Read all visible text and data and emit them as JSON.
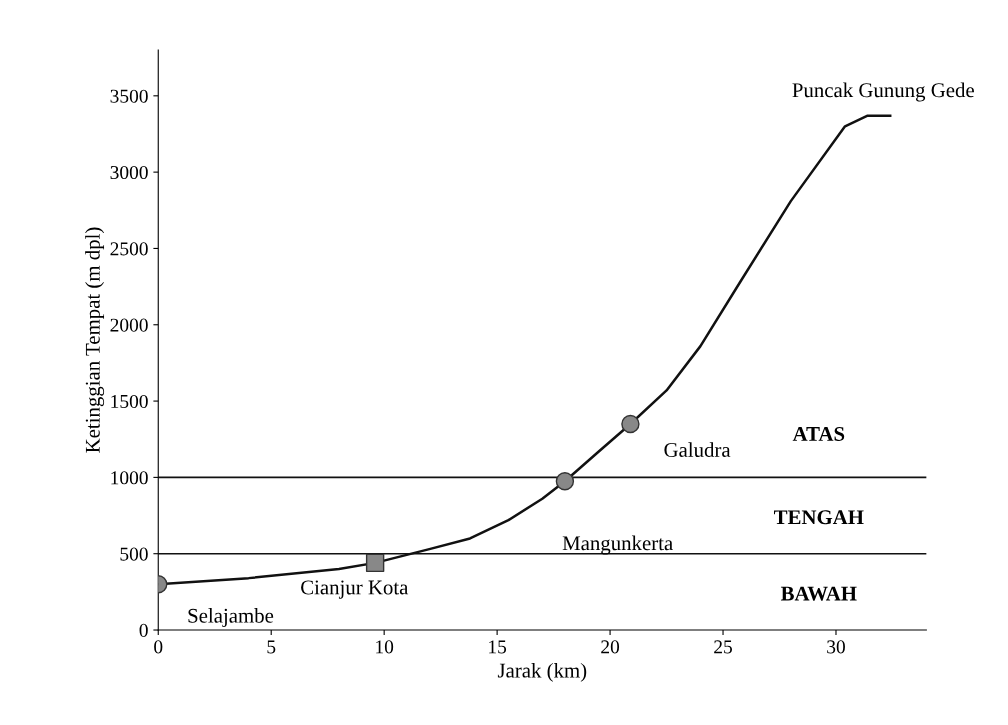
{
  "chart_data": {
    "type": "line",
    "xlabel": "Jarak (km)",
    "ylabel": "Ketinggian Tempat (m dpl)",
    "xlim": [
      0,
      34
    ],
    "ylim": [
      0,
      3800
    ],
    "xticks": [
      0,
      5,
      10,
      15,
      20,
      25,
      30
    ],
    "yticks": [
      0,
      500,
      1000,
      1500,
      2000,
      2500,
      3000,
      3500
    ],
    "grid": false,
    "legend": false,
    "series": [
      {
        "color": "#111111",
        "marker": "none",
        "x": [
          0,
          4,
          8,
          9.6,
          12,
          13.8,
          15.5,
          17,
          18,
          19.5,
          20.9,
          22.5,
          24,
          25.8,
          28,
          30.4,
          31.4,
          32.4
        ],
        "values": [
          300,
          340,
          400,
          440,
          530,
          600,
          720,
          860,
          975,
          1170,
          1350,
          1570,
          1860,
          2290,
          2810,
          3300,
          3370,
          3370
        ]
      },
      {
        "type": "scatter",
        "color": "#888888",
        "marker": "circle",
        "x": [
          0,
          18,
          20.9
        ],
        "values": [
          300,
          975,
          1350
        ]
      },
      {
        "type": "scatter",
        "color": "#888888",
        "marker": "square",
        "x": [
          9.6
        ],
        "values": [
          440
        ]
      }
    ],
    "ref_lines": [
      {
        "axis": "y",
        "value": 500,
        "color": "#111111"
      },
      {
        "axis": "y",
        "value": 1000,
        "color": "#111111"
      }
    ],
    "annotations": [
      {
        "text": "Selajambe",
        "x": 0,
        "y": 300
      },
      {
        "text": "Cianjur Kota",
        "x": 9.6,
        "y": 440
      },
      {
        "text": "Mangunkerta",
        "x": 18,
        "y": 975
      },
      {
        "text": "Galudra",
        "x": 20.9,
        "y": 1350
      },
      {
        "text": "Puncak Gunung Gede",
        "x": 32.4,
        "y": 3370
      },
      "ATAS",
      "TENGAH",
      "BAWAH"
    ]
  }
}
